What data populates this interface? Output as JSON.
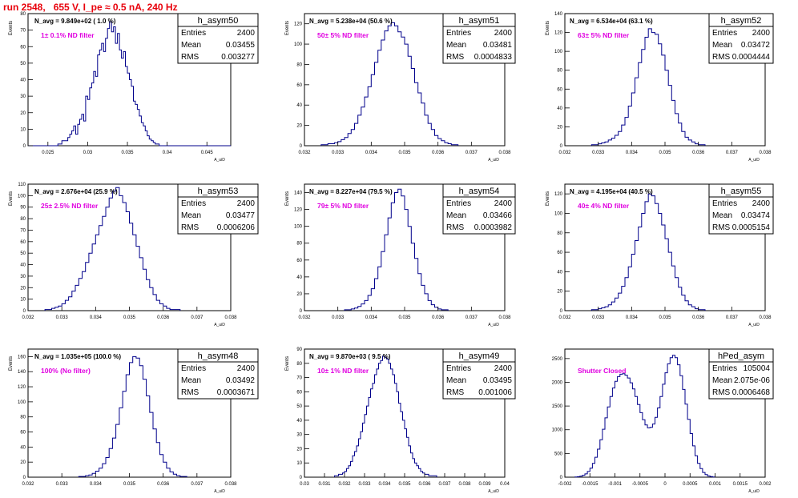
{
  "page_title": "run 2548,   655 V, I_pe ≈ 0.5 nA, 240 Hz",
  "colors": {
    "title": "#e8000b",
    "annotation": "#e000e0",
    "histogram": "#00008b",
    "frame": "#000000"
  },
  "chart_data": [
    {
      "type": "histogram",
      "name": "h_asym50",
      "stats": {
        "entries_label": "Entries",
        "entries": "2400",
        "mean_label": "Mean",
        "mean": "0.03455",
        "rms_label": "RMS",
        "rms": "0.003277"
      },
      "navg": "N_avg = 9.849e+02 ( 1.0 %)",
      "annotation": "1± 0.1% ND filter",
      "ylabel": "Events",
      "xlabel": "A_uiD",
      "xlim": [
        0.0225,
        0.048
      ],
      "ylim": [
        0,
        80
      ],
      "xticks": [
        0.025,
        0.03,
        0.035,
        0.04,
        0.045
      ],
      "xticklabels": [
        "0.025",
        "0.03",
        "0.035",
        "0.04",
        "0.045"
      ],
      "yticks": [
        0,
        10,
        20,
        30,
        40,
        50,
        60,
        70,
        80
      ],
      "yticklabels": [
        "0",
        "10",
        "20",
        "30",
        "40",
        "50",
        "60",
        "70",
        "80"
      ],
      "bins": {
        "x0": 0.0225,
        "dx": 0.00025,
        "counts": [
          0,
          0,
          0,
          0,
          0,
          0,
          0,
          0,
          0,
          0,
          0,
          0,
          0,
          0,
          0,
          1,
          1,
          3,
          3,
          3,
          5,
          7,
          9,
          12,
          7,
          13,
          16,
          19,
          15,
          30,
          28,
          35,
          38,
          45,
          42,
          55,
          58,
          62,
          57,
          65,
          71,
          75,
          69,
          72,
          62,
          68,
          58,
          53,
          57,
          48,
          44,
          40,
          36,
          27,
          25,
          22,
          18,
          14,
          12,
          9,
          6,
          4,
          3,
          2,
          1,
          1,
          0,
          0,
          0,
          0,
          0,
          0,
          0,
          0,
          0,
          0,
          0,
          0,
          0,
          0,
          0,
          0,
          0,
          0,
          0,
          0,
          0,
          0,
          0,
          0,
          0,
          0,
          0,
          0,
          0,
          0,
          0,
          0,
          0,
          0,
          0,
          0
        ]
      }
    },
    {
      "type": "histogram",
      "name": "h_asym51",
      "stats": {
        "entries_label": "Entries",
        "entries": "2400",
        "mean_label": "Mean",
        "mean": "0.03481",
        "rms_label": "RMS",
        "rms": "0.0004833"
      },
      "navg": "N_avg = 5.238e+04 (50.6 %)",
      "annotation": "50± 5% ND filter",
      "ylabel": "Events",
      "xlabel": "A_uiD",
      "xlim": [
        0.032,
        0.038
      ],
      "ylim": [
        0,
        130
      ],
      "xticks": [
        0.032,
        0.033,
        0.034,
        0.035,
        0.036,
        0.037,
        0.038
      ],
      "xticklabels": [
        "0.032",
        "0.033",
        "0.034",
        "0.035",
        "0.036",
        "0.037",
        "0.038"
      ],
      "yticks": [
        0,
        20,
        40,
        60,
        80,
        100,
        120
      ],
      "yticklabels": [
        "0",
        "20",
        "40",
        "60",
        "80",
        "100",
        "120"
      ],
      "bins": {
        "x0": 0.0325,
        "dx": 0.0001,
        "counts": [
          1,
          1,
          2,
          2,
          3,
          4,
          6,
          8,
          12,
          16,
          22,
          30,
          38,
          48,
          58,
          70,
          82,
          94,
          104,
          113,
          118,
          121,
          118,
          112,
          107,
          100,
          88,
          76,
          62,
          52,
          42,
          30,
          22,
          16,
          10,
          7,
          5,
          3,
          2,
          1,
          1
        ]
      }
    },
    {
      "type": "histogram",
      "name": "h_asym52",
      "stats": {
        "entries_label": "Entries",
        "entries": "2400",
        "mean_label": "Mean",
        "mean": "0.03472",
        "rms_label": "RMS",
        "rms": "0.0004444"
      },
      "navg": "N_avg = 6.534e+04 (63.1 %)",
      "annotation": "63± 5% ND filter",
      "ylabel": "Events",
      "xlabel": "A_uiD",
      "xlim": [
        0.032,
        0.038
      ],
      "ylim": [
        0,
        140
      ],
      "xticks": [
        0.032,
        0.033,
        0.034,
        0.035,
        0.036,
        0.037,
        0.038
      ],
      "xticklabels": [
        "0.032",
        "0.033",
        "0.034",
        "0.035",
        "0.036",
        "0.037",
        "0.038"
      ],
      "yticks": [
        0,
        20,
        40,
        60,
        80,
        100,
        120,
        140
      ],
      "yticklabels": [
        "0",
        "20",
        "40",
        "60",
        "80",
        "100",
        "120",
        "140"
      ],
      "bins": {
        "x0": 0.0328,
        "dx": 0.0001,
        "counts": [
          1,
          1,
          2,
          3,
          4,
          6,
          8,
          11,
          15,
          22,
          30,
          42,
          56,
          72,
          88,
          102,
          115,
          124,
          120,
          118,
          108,
          96,
          80,
          64,
          48,
          34,
          24,
          15,
          9,
          6,
          4,
          2,
          1,
          1
        ]
      }
    },
    {
      "type": "histogram",
      "name": "h_asym53",
      "stats": {
        "entries_label": "Entries",
        "entries": "2400",
        "mean_label": "Mean",
        "mean": "0.03477",
        "rms_label": "RMS",
        "rms": "0.0006206"
      },
      "navg": "N_avg = 2.676e+04 (25.9 %)",
      "annotation": "25± 2.5% ND filter",
      "ylabel": "Events",
      "xlabel": "A_uiD",
      "xlim": [
        0.032,
        0.038
      ],
      "ylim": [
        0,
        110
      ],
      "xticks": [
        0.032,
        0.033,
        0.034,
        0.035,
        0.036,
        0.037,
        0.038
      ],
      "xticklabels": [
        "0.032",
        "0.033",
        "0.034",
        "0.035",
        "0.036",
        "0.037",
        "0.038"
      ],
      "yticks": [
        0,
        10,
        20,
        30,
        40,
        50,
        60,
        70,
        80,
        90,
        100,
        110
      ],
      "yticklabels": [
        "0",
        "10",
        "20",
        "30",
        "40",
        "50",
        "60",
        "70",
        "80",
        "90",
        "100",
        "110"
      ],
      "bins": {
        "x0": 0.0325,
        "dx": 0.0001,
        "counts": [
          1,
          1,
          2,
          3,
          4,
          6,
          9,
          12,
          17,
          22,
          28,
          34,
          42,
          50,
          58,
          66,
          74,
          82,
          90,
          98,
          104,
          107,
          100,
          94,
          86,
          76,
          66,
          56,
          46,
          36,
          27,
          20,
          14,
          9,
          6,
          4,
          2,
          1,
          1,
          1
        ]
      }
    },
    {
      "type": "histogram",
      "name": "h_asym54",
      "stats": {
        "entries_label": "Entries",
        "entries": "2400",
        "mean_label": "Mean",
        "mean": "0.03466",
        "rms_label": "RMS",
        "rms": "0.0003982"
      },
      "navg": "N_avg = 8.227e+04 (79.5 %)",
      "annotation": "79± 5% ND filter",
      "ylabel": "Events",
      "xlabel": "A_uiD",
      "xlim": [
        0.032,
        0.038
      ],
      "ylim": [
        0,
        150
      ],
      "xticks": [
        0.032,
        0.033,
        0.034,
        0.035,
        0.036,
        0.037,
        0.038
      ],
      "xticklabels": [
        "0.032",
        "0.033",
        "0.034",
        "0.035",
        "0.036",
        "0.037",
        "0.038"
      ],
      "yticks": [
        0,
        20,
        40,
        60,
        80,
        100,
        120,
        140
      ],
      "yticklabels": [
        "0",
        "20",
        "40",
        "60",
        "80",
        "100",
        "120",
        "140"
      ],
      "bins": {
        "x0": 0.0332,
        "dx": 0.0001,
        "counts": [
          1,
          1,
          2,
          3,
          5,
          8,
          12,
          18,
          26,
          38,
          52,
          70,
          90,
          110,
          128,
          140,
          144,
          136,
          120,
          100,
          80,
          62,
          44,
          30,
          20,
          12,
          7,
          4,
          2,
          1,
          1
        ]
      }
    },
    {
      "type": "histogram",
      "name": "h_asym55",
      "stats": {
        "entries_label": "Entries",
        "entries": "2400",
        "mean_label": "Mean",
        "mean": "0.03474",
        "rms_label": "RMS",
        "rms": "0.0005154"
      },
      "navg": "N_avg = 4.195e+04 (40.5 %)",
      "annotation": "40± 4% ND filter",
      "ylabel": "Events",
      "xlabel": "A_uiD",
      "xlim": [
        0.032,
        0.038
      ],
      "ylim": [
        0,
        130
      ],
      "xticks": [
        0.032,
        0.033,
        0.034,
        0.035,
        0.036,
        0.037,
        0.038
      ],
      "xticklabels": [
        "0.032",
        "0.033",
        "0.034",
        "0.035",
        "0.036",
        "0.037",
        "0.038"
      ],
      "yticks": [
        0,
        20,
        40,
        60,
        80,
        100,
        120
      ],
      "yticklabels": [
        "0",
        "20",
        "40",
        "60",
        "80",
        "100",
        "120"
      ],
      "bins": {
        "x0": 0.0328,
        "dx": 0.0001,
        "counts": [
          1,
          1,
          2,
          3,
          4,
          6,
          9,
          13,
          18,
          25,
          34,
          45,
          58,
          72,
          86,
          100,
          112,
          120,
          118,
          110,
          100,
          88,
          74,
          60,
          46,
          34,
          24,
          16,
          10,
          6,
          4,
          2,
          1,
          1
        ]
      }
    },
    {
      "type": "histogram",
      "name": "h_asym48",
      "stats": {
        "entries_label": "Entries",
        "entries": "2400",
        "mean_label": "Mean",
        "mean": "0.03492",
        "rms_label": "RMS",
        "rms": "0.0003671"
      },
      "navg": "N_avg = 1.035e+05 (100.0 %)",
      "annotation": "100% (No filter)",
      "ylabel": "Events",
      "xlabel": "A_uiD",
      "xlim": [
        0.032,
        0.038
      ],
      "ylim": [
        0,
        170
      ],
      "xticks": [
        0.032,
        0.033,
        0.034,
        0.035,
        0.036,
        0.037,
        0.038
      ],
      "xticklabels": [
        "0.032",
        "0.033",
        "0.034",
        "0.035",
        "0.036",
        "0.037",
        "0.038"
      ],
      "yticks": [
        0,
        20,
        40,
        60,
        80,
        100,
        120,
        140,
        160
      ],
      "yticklabels": [
        "0",
        "20",
        "40",
        "60",
        "80",
        "100",
        "120",
        "140",
        "160"
      ],
      "bins": {
        "x0": 0.0335,
        "dx": 0.0001,
        "counts": [
          1,
          1,
          2,
          3,
          5,
          8,
          12,
          18,
          26,
          38,
          52,
          70,
          92,
          114,
          136,
          152,
          160,
          158,
          148,
          130,
          108,
          86,
          64,
          46,
          30,
          20,
          12,
          7,
          4,
          2,
          1,
          1
        ]
      }
    },
    {
      "type": "histogram",
      "name": "h_asym49",
      "stats": {
        "entries_label": "Entries",
        "entries": "2400",
        "mean_label": "Mean",
        "mean": "0.03495",
        "rms_label": "RMS",
        "rms": "0.001006"
      },
      "navg": "N_avg = 9.870e+03 ( 9.5 %)",
      "annotation": "10± 1% ND filter",
      "ylabel": "Events",
      "xlabel": "A_uiD",
      "xlim": [
        0.03,
        0.04
      ],
      "ylim": [
        0,
        90
      ],
      "xticks": [
        0.03,
        0.031,
        0.032,
        0.033,
        0.034,
        0.035,
        0.036,
        0.037,
        0.038,
        0.039,
        0.04
      ],
      "xticklabels": [
        "0.03",
        "0.031",
        "0.032",
        "0.033",
        "0.034",
        "0.035",
        "0.036",
        "0.037",
        "0.038",
        "0.039",
        "0.04"
      ],
      "yticks": [
        0,
        10,
        20,
        30,
        40,
        50,
        60,
        70,
        80,
        90
      ],
      "yticklabels": [
        "0",
        "10",
        "20",
        "30",
        "40",
        "50",
        "60",
        "70",
        "80",
        "90"
      ],
      "bins": {
        "x0": 0.0315,
        "dx": 0.0001,
        "counts": [
          1,
          1,
          2,
          2,
          3,
          4,
          6,
          8,
          11,
          15,
          18,
          22,
          27,
          32,
          38,
          44,
          50,
          56,
          62,
          66,
          72,
          76,
          80,
          82,
          85,
          84,
          83,
          80,
          76,
          72,
          66,
          60,
          52,
          46,
          40,
          34,
          28,
          22,
          17,
          13,
          10,
          8,
          6,
          4,
          3,
          2,
          2,
          1,
          1,
          1,
          1
        ]
      }
    },
    {
      "type": "histogram",
      "name": "hPed_asym",
      "stats": {
        "entries_label": "Entries",
        "entries": "105004",
        "mean_label": "Mean",
        "mean": "2.075e-06",
        "rms_label": "RMS",
        "rms": "0.0006468"
      },
      "navg": "",
      "annotation": "Shutter Closed",
      "ylabel": "",
      "xlabel": "A_uiD",
      "xlim": [
        -0.002,
        0.002
      ],
      "ylim": [
        0,
        2700
      ],
      "xticks": [
        -0.002,
        -0.0015,
        -0.001,
        -0.0005,
        0,
        0.0005,
        0.001,
        0.0015,
        0.002
      ],
      "xticklabels": [
        "-0.002",
        "-0.0015",
        "-0.001",
        "-0.0005",
        "0",
        "0.0005",
        "0.001",
        "0.0015",
        "0.002"
      ],
      "yticks": [
        0,
        500,
        1000,
        1500,
        2000,
        2500
      ],
      "yticklabels": [
        "0",
        "500",
        "1000",
        "1500",
        "2000",
        "2500"
      ],
      "bins": {
        "x0": -0.0018,
        "dx": 5e-05,
        "counts": [
          5,
          10,
          20,
          40,
          70,
          120,
          190,
          290,
          420,
          590,
          790,
          1010,
          1250,
          1480,
          1700,
          1880,
          2020,
          2120,
          2170,
          2180,
          2150,
          2090,
          1990,
          1860,
          1700,
          1530,
          1360,
          1210,
          1100,
          1040,
          1050,
          1120,
          1260,
          1460,
          1700,
          1960,
          2200,
          2390,
          2520,
          2570,
          2520,
          2370,
          2140,
          1850,
          1540,
          1220,
          920,
          660,
          450,
          290,
          180,
          100,
          55,
          25,
          12,
          5
        ]
      }
    }
  ]
}
